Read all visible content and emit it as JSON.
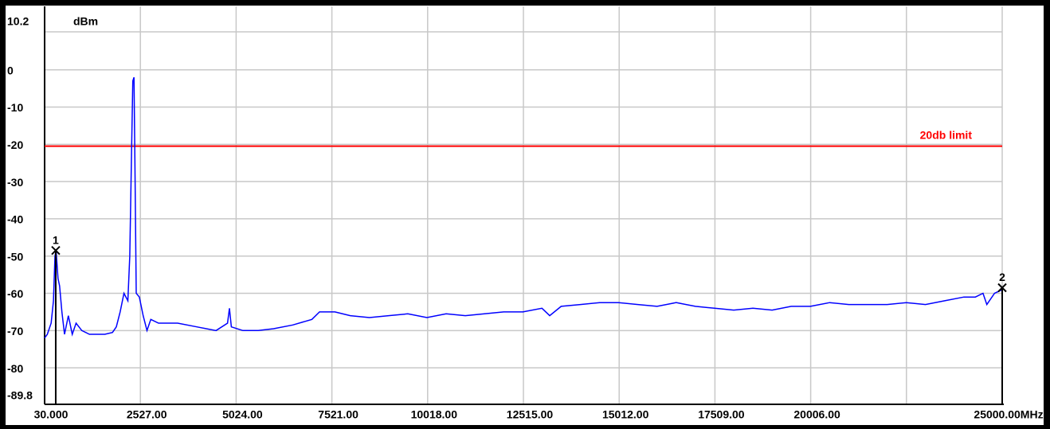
{
  "chart_data": {
    "type": "line",
    "y_unit": "dBm",
    "xlim": [
      30,
      25000
    ],
    "ylim": [
      -89.8,
      10.2
    ],
    "yticks": [
      10.2,
      0,
      -10,
      -20,
      -30,
      -40,
      -50,
      -60,
      -70,
      -80,
      -89.8
    ],
    "xticks": [
      {
        "value": 30,
        "label": "30.000"
      },
      {
        "value": 2527,
        "label": "2527.00"
      },
      {
        "value": 5024,
        "label": "5024.00"
      },
      {
        "value": 7521,
        "label": "7521.00"
      },
      {
        "value": 10018,
        "label": "10018.00"
      },
      {
        "value": 12515,
        "label": "12515.00"
      },
      {
        "value": 15012,
        "label": "15012.00"
      },
      {
        "value": 17509,
        "label": "17509.00"
      },
      {
        "value": 20006,
        "label": "20006.00"
      },
      {
        "value": 22503,
        "label": null
      },
      {
        "value": 25000,
        "label": "25000.00MHz"
      }
    ],
    "grid": true,
    "limit": {
      "label": "20db limit",
      "value": -20.5,
      "color": "#ff0000"
    },
    "markers": [
      {
        "label": "1",
        "x": 320,
        "y": -48.5
      },
      {
        "label": "2",
        "x": 25000,
        "y": -58.5
      }
    ],
    "series": [
      {
        "color": "#0000ff",
        "x": [
          30,
          100,
          200,
          260,
          300,
          330,
          380,
          420,
          480,
          550,
          650,
          750,
          850,
          1000,
          1200,
          1400,
          1600,
          1800,
          1900,
          2000,
          2100,
          2200,
          2250,
          2300,
          2330,
          2360,
          2390,
          2420,
          2500,
          2600,
          2700,
          2800,
          3000,
          3500,
          4000,
          4500,
          4800,
          4850,
          4900,
          5200,
          5600,
          6000,
          6500,
          7000,
          7200,
          7600,
          8000,
          8500,
          9000,
          9500,
          10000,
          10500,
          11000,
          11500,
          12000,
          12500,
          13000,
          13200,
          13500,
          14000,
          14500,
          15000,
          15500,
          16000,
          16500,
          17000,
          17500,
          18000,
          18500,
          19000,
          19500,
          20000,
          20500,
          21000,
          21500,
          22000,
          22500,
          23000,
          23500,
          24000,
          24300,
          24500,
          24600,
          24800,
          25000
        ],
        "values": [
          -72,
          -71,
          -68,
          -62,
          -50,
          -48.5,
          -56,
          -58,
          -65,
          -71,
          -66,
          -71,
          -68,
          -70,
          -71,
          -71,
          -71,
          -70.5,
          -69,
          -65,
          -60,
          -62,
          -50,
          -20,
          -3,
          -2,
          -30,
          -60,
          -61,
          -66,
          -70,
          -67,
          -68,
          -68,
          -69,
          -70,
          -68,
          -64,
          -69,
          -70,
          -70,
          -69.5,
          -68.5,
          -67,
          -65,
          -65,
          -66,
          -66.5,
          -66,
          -65.5,
          -66.5,
          -65.5,
          -66,
          -65.5,
          -65,
          -65,
          -64,
          -66,
          -63.5,
          -63,
          -62.5,
          -62.5,
          -63,
          -63.5,
          -62.5,
          -63.5,
          -64,
          -64.5,
          -64,
          -64.5,
          -63.5,
          -63.5,
          -62.5,
          -63,
          -63,
          -63,
          -62.5,
          -63,
          -62,
          -61,
          -61,
          -60,
          -63,
          -60,
          -59
        ]
      }
    ]
  }
}
